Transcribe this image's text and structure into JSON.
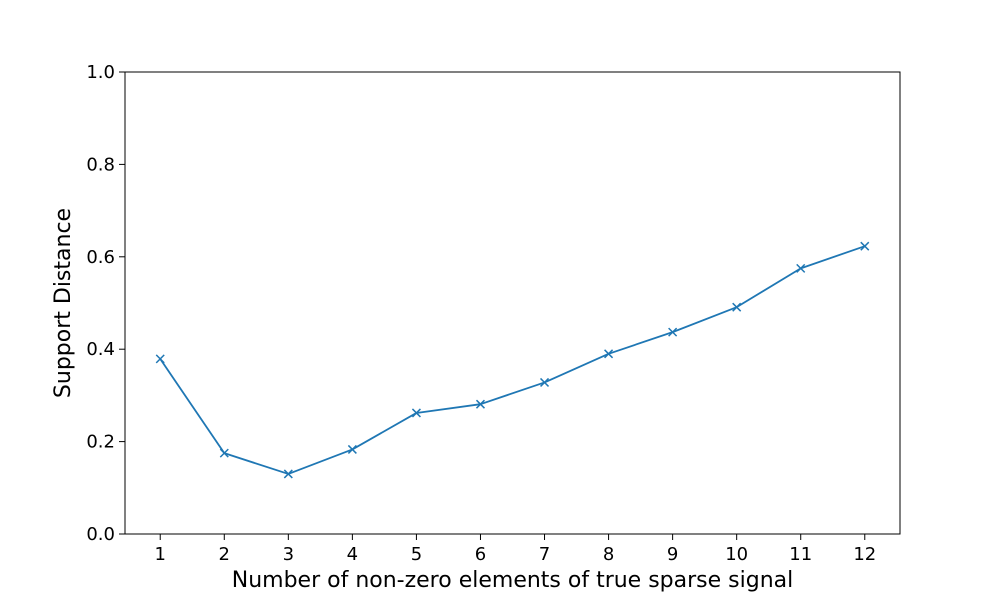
{
  "chart_data": {
    "type": "line",
    "title": "",
    "xlabel": "Number of non-zero elements of true sparse signal",
    "ylabel": "Support Distance",
    "x": [
      1,
      2,
      3,
      4,
      5,
      6,
      7,
      8,
      9,
      10,
      11,
      12
    ],
    "x_tick_labels": [
      "1",
      "2",
      "3",
      "4",
      "5",
      "6",
      "7",
      "8",
      "9",
      "10",
      "11",
      "12"
    ],
    "y_ticks": [
      0.0,
      0.2,
      0.4,
      0.6,
      0.8,
      1.0
    ],
    "y_tick_labels": [
      "0.0",
      "0.2",
      "0.4",
      "0.6",
      "0.8",
      "1.0"
    ],
    "xlim": [
      0.45,
      12.55
    ],
    "ylim": [
      0.0,
      1.0
    ],
    "grid": false,
    "legend": "none",
    "marker": "x",
    "series": [
      {
        "color": "#1f77b4",
        "values": [
          0.379,
          0.175,
          0.13,
          0.183,
          0.262,
          0.281,
          0.328,
          0.39,
          0.437,
          0.491,
          0.575,
          0.623
        ]
      }
    ]
  }
}
